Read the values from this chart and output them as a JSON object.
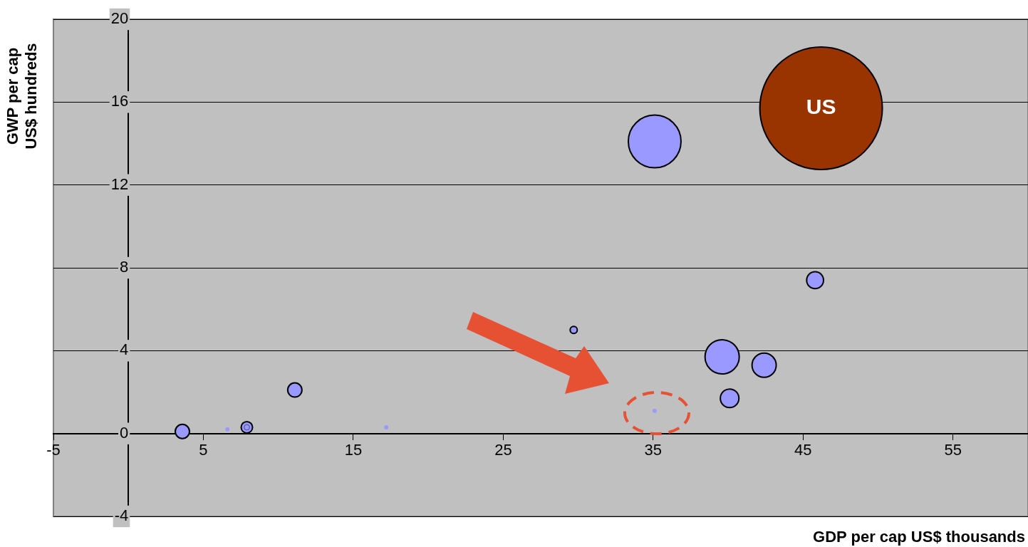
{
  "chart_data": {
    "type": "bubble",
    "xlabel": "GDP per cap US$ thousands",
    "ylabel": "GWP per cap\nUS$ hundreds",
    "xlim": [
      -5,
      60
    ],
    "xticks": [
      -5,
      5,
      15,
      25,
      35,
      45,
      55
    ],
    "ylim": [
      -4,
      20
    ],
    "yticks": [
      -4,
      0,
      4,
      8,
      12,
      16,
      20
    ],
    "grid": "y",
    "legend": false,
    "series": [
      {
        "color": "#9999ff",
        "x": [
          35.1,
          45.8,
          29.7,
          39.6,
          42.4,
          40.1,
          35.1,
          11.1,
          3.6,
          6.6,
          7.9,
          7.9,
          17.2
        ],
        "values": [
          14.1,
          7.4,
          5.0,
          3.7,
          3.3,
          1.7,
          1.1,
          2.1,
          0.1,
          0.2,
          0.3,
          0.3,
          0.3
        ],
        "sizes": [
          0.185,
          0.019,
          0.0034,
          0.078,
          0.039,
          0.023,
          0.0012,
          0.0135,
          0.0135,
          0.0012,
          0.002,
          0.0087,
          0.0012
        ]
      },
      {
        "name": "US",
        "color": "#993300",
        "x": [
          46.2
        ],
        "values": [
          15.7
        ],
        "sizes": [
          1
        ]
      }
    ]
  }
}
